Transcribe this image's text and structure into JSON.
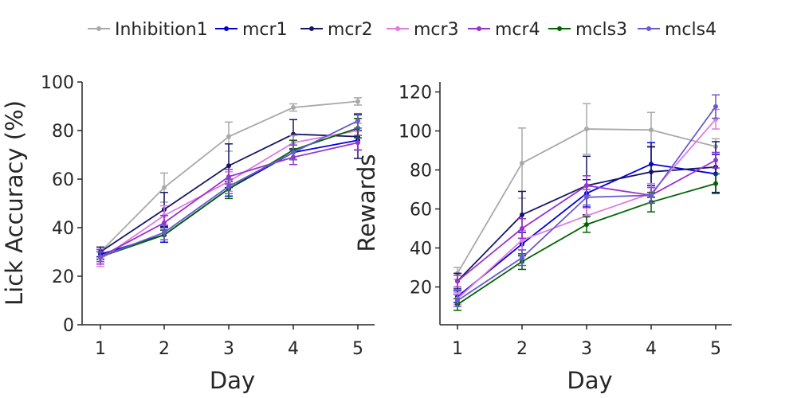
{
  "legend": {
    "placement": "top-center",
    "entries": [
      {
        "name": "Inhibition1",
        "color": "#a9a9a9"
      },
      {
        "name": "mcr1",
        "color": "#0000dd"
      },
      {
        "name": "mcr2",
        "color": "#161666"
      },
      {
        "name": "mcr3",
        "color": "#e07be0"
      },
      {
        "name": "mcr4",
        "color": "#9932cc"
      },
      {
        "name": "mcls3",
        "color": "#006400"
      },
      {
        "name": "mcls4",
        "color": "#6a5acd"
      }
    ]
  },
  "chart_data": [
    {
      "type": "line",
      "xlabel": "Day",
      "ylabel": "Lick Accuracy (%)",
      "x": [
        1,
        2,
        3,
        4,
        5
      ],
      "xticks": [
        "1",
        "2",
        "3",
        "4",
        "5"
      ],
      "ylim": [
        0,
        100
      ],
      "yticks": [
        "0",
        "20",
        "40",
        "60",
        "80",
        "100"
      ],
      "grid": false,
      "series": [
        {
          "name": "Inhibition1",
          "values": [
            30,
            56.5,
            77.5,
            89.5,
            92
          ],
          "err": [
            2,
            6,
            6,
            1.5,
            1.5
          ]
        },
        {
          "name": "mcr1",
          "values": [
            29,
            37,
            56,
            71,
            76
          ],
          "err": [
            2,
            3,
            3,
            3,
            4
          ]
        },
        {
          "name": "mcr2",
          "values": [
            30,
            47.5,
            65.5,
            78.5,
            77.5
          ],
          "err": [
            2,
            7,
            9,
            6,
            9
          ]
        },
        {
          "name": "mcr3",
          "values": [
            27,
            45,
            59,
            75,
            80
          ],
          "err": [
            3,
            4,
            4,
            3,
            3
          ]
        },
        {
          "name": "mcr4",
          "values": [
            28,
            42,
            61,
            69,
            75
          ],
          "err": [
            3,
            3,
            3,
            3,
            3
          ]
        },
        {
          "name": "mcls3",
          "values": [
            28,
            37,
            56,
            72,
            81
          ],
          "err": [
            2,
            2,
            4,
            4,
            4
          ]
        },
        {
          "name": "mcls4",
          "values": [
            28,
            38,
            57,
            71,
            84
          ],
          "err": [
            2,
            3,
            3,
            3,
            3
          ]
        }
      ]
    },
    {
      "type": "line",
      "xlabel": "Day",
      "ylabel": "Rewards",
      "x": [
        1,
        2,
        3,
        4,
        5
      ],
      "xticks": [
        "1",
        "2",
        "3",
        "4",
        "5"
      ],
      "ylim": [
        0,
        125
      ],
      "yticks": [
        "20",
        "40",
        "60",
        "80",
        "100",
        "120"
      ],
      "grid": false,
      "series": [
        {
          "name": "Inhibition1",
          "values": [
            27,
            83.5,
            101,
            100.5,
            92
          ],
          "err": [
            3,
            18,
            13,
            9,
            4
          ]
        },
        {
          "name": "mcr1",
          "values": [
            15,
            42,
            68,
            83,
            78
          ],
          "err": [
            3,
            6,
            7,
            11,
            10
          ]
        },
        {
          "name": "mcr2",
          "values": [
            23,
            57,
            72,
            79,
            81.5
          ],
          "err": [
            4,
            12,
            15,
            13,
            13
          ]
        },
        {
          "name": "mcr3",
          "values": [
            14,
            44,
            56.5,
            68,
            106
          ],
          "err": [
            3,
            5,
            4,
            5,
            5
          ]
        },
        {
          "name": "mcr4",
          "values": [
            23,
            50,
            72,
            67,
            85
          ],
          "err": [
            3,
            5,
            5,
            4,
            4
          ]
        },
        {
          "name": "mcls3",
          "values": [
            11,
            33,
            52,
            63.5,
            73
          ],
          "err": [
            3,
            4,
            4,
            5,
            5
          ]
        },
        {
          "name": "mcls4",
          "values": [
            13,
            35,
            66,
            67,
            112.5
          ],
          "err": [
            3,
            4,
            4,
            4,
            6
          ]
        }
      ]
    }
  ]
}
